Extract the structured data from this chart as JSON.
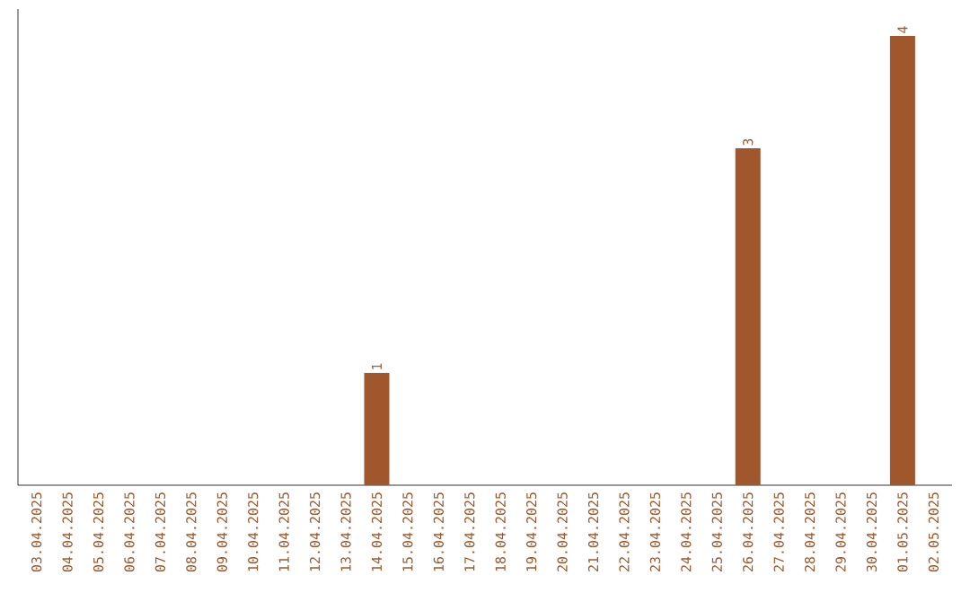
{
  "chart_data": {
    "type": "bar",
    "categories": [
      "03.04.2025",
      "04.04.2025",
      "05.04.2025",
      "06.04.2025",
      "07.04.2025",
      "08.04.2025",
      "09.04.2025",
      "10.04.2025",
      "11.04.2025",
      "12.04.2025",
      "13.04.2025",
      "14.04.2025",
      "15.04.2025",
      "16.04.2025",
      "17.04.2025",
      "18.04.2025",
      "19.04.2025",
      "20.04.2025",
      "21.04.2025",
      "22.04.2025",
      "23.04.2025",
      "24.04.2025",
      "25.04.2025",
      "26.04.2025",
      "27.04.2025",
      "28.04.2025",
      "29.04.2025",
      "30.04.2025",
      "01.05.2025",
      "02.05.2025"
    ],
    "values": [
      0,
      0,
      0,
      0,
      0,
      0,
      0,
      0,
      0,
      0,
      0,
      1,
      0,
      0,
      0,
      0,
      0,
      0,
      0,
      0,
      0,
      0,
      0,
      3,
      0,
      0,
      0,
      0,
      4,
      0
    ],
    "value_labels": [
      null,
      null,
      null,
      null,
      null,
      null,
      null,
      null,
      null,
      null,
      null,
      "1",
      null,
      null,
      null,
      null,
      null,
      null,
      null,
      null,
      null,
      null,
      null,
      "3",
      null,
      null,
      null,
      null,
      "4",
      null
    ],
    "color": "#a0572b"
  }
}
